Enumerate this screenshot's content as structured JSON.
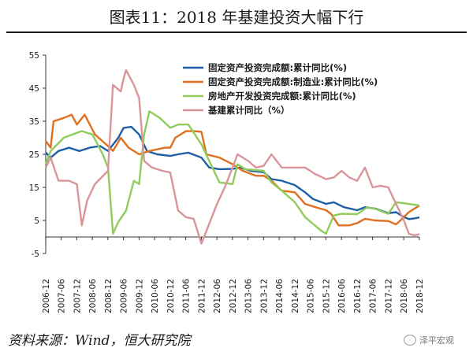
{
  "title": "图表11：2018 年基建投资大幅下行",
  "source": "资料来源：Wind，恒大研究院",
  "watermark": "泽平宏观",
  "chart_data": {
    "type": "line",
    "ylim": [
      -5,
      55
    ],
    "yticks": [
      -5,
      5,
      15,
      25,
      35,
      45,
      55
    ],
    "xticks": [
      "2006-12",
      "2007-06",
      "2007-12",
      "2008-06",
      "2008-12",
      "2009-06",
      "2009-12",
      "2010-06",
      "2010-12",
      "2011-06",
      "2011-12",
      "2012-06",
      "2012-12",
      "2013-06",
      "2013-12",
      "2014-06",
      "2014-12",
      "2015-06",
      "2015-12",
      "2016-06",
      "2016-12",
      "2017-06",
      "2017-12",
      "2018-06",
      "2018-12"
    ],
    "legend_position": "top-right",
    "grid": false,
    "series": [
      {
        "name": "固定资产投资完成额:累计同比(%)",
        "color": "#1f5fa6",
        "points": [
          [
            2006.92,
            25.5
          ],
          [
            2007.08,
            24
          ],
          [
            2007.33,
            26
          ],
          [
            2007.67,
            27
          ],
          [
            2008.0,
            26
          ],
          [
            2008.33,
            27
          ],
          [
            2008.67,
            27.5
          ],
          [
            2008.92,
            26
          ],
          [
            2009.25,
            30
          ],
          [
            2009.42,
            33
          ],
          [
            2009.67,
            33.3
          ],
          [
            2009.92,
            31
          ],
          [
            2010.17,
            26
          ],
          [
            2010.5,
            25
          ],
          [
            2010.92,
            24.5
          ],
          [
            2011.17,
            25
          ],
          [
            2011.5,
            25.5
          ],
          [
            2011.92,
            24
          ],
          [
            2012.17,
            21
          ],
          [
            2012.5,
            20.5
          ],
          [
            2012.92,
            20.6
          ],
          [
            2013.17,
            21
          ],
          [
            2013.5,
            20
          ],
          [
            2013.92,
            19.6
          ],
          [
            2014.17,
            17.5
          ],
          [
            2014.5,
            17
          ],
          [
            2014.92,
            15.7
          ],
          [
            2015.25,
            13.5
          ],
          [
            2015.5,
            11.5
          ],
          [
            2015.92,
            10
          ],
          [
            2016.17,
            10.5
          ],
          [
            2016.5,
            9
          ],
          [
            2016.92,
            8.1
          ],
          [
            2017.17,
            9
          ],
          [
            2017.5,
            8.6
          ],
          [
            2017.92,
            7.2
          ],
          [
            2018.17,
            7.5
          ],
          [
            2018.42,
            6
          ],
          [
            2018.58,
            5.4
          ],
          [
            2018.75,
            5.6
          ],
          [
            2018.92,
            5.9
          ]
        ]
      },
      {
        "name": "固定资产投资完成额:制造业:累计同比(%)",
        "color": "#e07020",
        "points": [
          [
            2006.92,
            29
          ],
          [
            2007.08,
            27
          ],
          [
            2007.17,
            35
          ],
          [
            2007.5,
            36
          ],
          [
            2007.75,
            37
          ],
          [
            2007.92,
            34
          ],
          [
            2008.17,
            37
          ],
          [
            2008.5,
            31
          ],
          [
            2008.92,
            27.5
          ],
          [
            2009.08,
            26
          ],
          [
            2009.33,
            30
          ],
          [
            2009.58,
            27
          ],
          [
            2009.92,
            25
          ],
          [
            2010.25,
            26
          ],
          [
            2010.75,
            27
          ],
          [
            2010.92,
            27
          ],
          [
            2011.08,
            30
          ],
          [
            2011.42,
            32
          ],
          [
            2011.67,
            32
          ],
          [
            2011.92,
            31.8
          ],
          [
            2012.08,
            25
          ],
          [
            2012.5,
            24
          ],
          [
            2012.92,
            22
          ],
          [
            2013.25,
            20
          ],
          [
            2013.67,
            18.5
          ],
          [
            2013.92,
            18.5
          ],
          [
            2014.17,
            17
          ],
          [
            2014.5,
            14
          ],
          [
            2014.92,
            13.5
          ],
          [
            2015.25,
            10
          ],
          [
            2015.58,
            9
          ],
          [
            2015.92,
            8.1
          ],
          [
            2016.08,
            7
          ],
          [
            2016.33,
            3.5
          ],
          [
            2016.67,
            3.5
          ],
          [
            2016.92,
            4.2
          ],
          [
            2017.17,
            5.5
          ],
          [
            2017.5,
            5
          ],
          [
            2017.92,
            4.8
          ],
          [
            2018.17,
            3.8
          ],
          [
            2018.33,
            5.2
          ],
          [
            2018.58,
            7.5
          ],
          [
            2018.92,
            9.5
          ]
        ]
      },
      {
        "name": "房地产开发投资完成额:累计同比(%)",
        "color": "#8fcc5c",
        "points": [
          [
            2006.92,
            22
          ],
          [
            2007.08,
            26
          ],
          [
            2007.5,
            30
          ],
          [
            2007.92,
            31.5
          ],
          [
            2008.08,
            32
          ],
          [
            2008.42,
            31
          ],
          [
            2008.75,
            25
          ],
          [
            2008.92,
            21
          ],
          [
            2009.08,
            1
          ],
          [
            2009.25,
            4.5
          ],
          [
            2009.5,
            8
          ],
          [
            2009.75,
            17
          ],
          [
            2009.92,
            16
          ],
          [
            2010.08,
            31
          ],
          [
            2010.25,
            38
          ],
          [
            2010.58,
            36
          ],
          [
            2010.92,
            33
          ],
          [
            2011.17,
            34
          ],
          [
            2011.5,
            34
          ],
          [
            2011.92,
            28
          ],
          [
            2012.17,
            23
          ],
          [
            2012.5,
            16.5
          ],
          [
            2012.92,
            16
          ],
          [
            2013.08,
            22
          ],
          [
            2013.33,
            20.5
          ],
          [
            2013.92,
            20
          ],
          [
            2014.17,
            16.5
          ],
          [
            2014.5,
            14
          ],
          [
            2014.92,
            10.5
          ],
          [
            2015.25,
            6
          ],
          [
            2015.5,
            4
          ],
          [
            2015.75,
            2
          ],
          [
            2015.92,
            1
          ],
          [
            2016.17,
            6.5
          ],
          [
            2016.42,
            7
          ],
          [
            2016.92,
            6.9
          ],
          [
            2017.25,
            9
          ],
          [
            2017.5,
            8.5
          ],
          [
            2017.92,
            7
          ],
          [
            2018.17,
            10.5
          ],
          [
            2018.58,
            10
          ],
          [
            2018.92,
            9.5
          ]
        ]
      },
      {
        "name": "基建累计同比（%）",
        "color": "#d9959a",
        "points": [
          [
            2006.92,
            21
          ],
          [
            2007.08,
            24
          ],
          [
            2007.33,
            17
          ],
          [
            2007.67,
            17
          ],
          [
            2007.92,
            16
          ],
          [
            2008.08,
            3.5
          ],
          [
            2008.25,
            11
          ],
          [
            2008.5,
            16
          ],
          [
            2008.92,
            20
          ],
          [
            2009.08,
            46
          ],
          [
            2009.33,
            44
          ],
          [
            2009.42,
            48
          ],
          [
            2009.5,
            50.5
          ],
          [
            2009.75,
            46
          ],
          [
            2009.92,
            42
          ],
          [
            2010.08,
            23
          ],
          [
            2010.33,
            21
          ],
          [
            2010.67,
            20
          ],
          [
            2010.92,
            19.5
          ],
          [
            2011.17,
            8
          ],
          [
            2011.42,
            6
          ],
          [
            2011.67,
            5.5
          ],
          [
            2011.92,
            -2
          ],
          [
            2012.17,
            4
          ],
          [
            2012.42,
            10
          ],
          [
            2012.67,
            15
          ],
          [
            2012.92,
            21
          ],
          [
            2013.08,
            25
          ],
          [
            2013.42,
            23
          ],
          [
            2013.67,
            21
          ],
          [
            2013.92,
            21.5
          ],
          [
            2014.17,
            25
          ],
          [
            2014.5,
            21
          ],
          [
            2014.92,
            21
          ],
          [
            2015.25,
            21
          ],
          [
            2015.58,
            19
          ],
          [
            2015.92,
            17.5
          ],
          [
            2016.17,
            18
          ],
          [
            2016.42,
            20
          ],
          [
            2016.67,
            18
          ],
          [
            2016.92,
            17
          ],
          [
            2017.17,
            21
          ],
          [
            2017.42,
            15
          ],
          [
            2017.67,
            15.5
          ],
          [
            2017.92,
            15
          ],
          [
            2018.17,
            10
          ],
          [
            2018.42,
            5
          ],
          [
            2018.58,
            1
          ],
          [
            2018.75,
            0.5
          ],
          [
            2018.92,
            0.8
          ]
        ]
      }
    ]
  }
}
